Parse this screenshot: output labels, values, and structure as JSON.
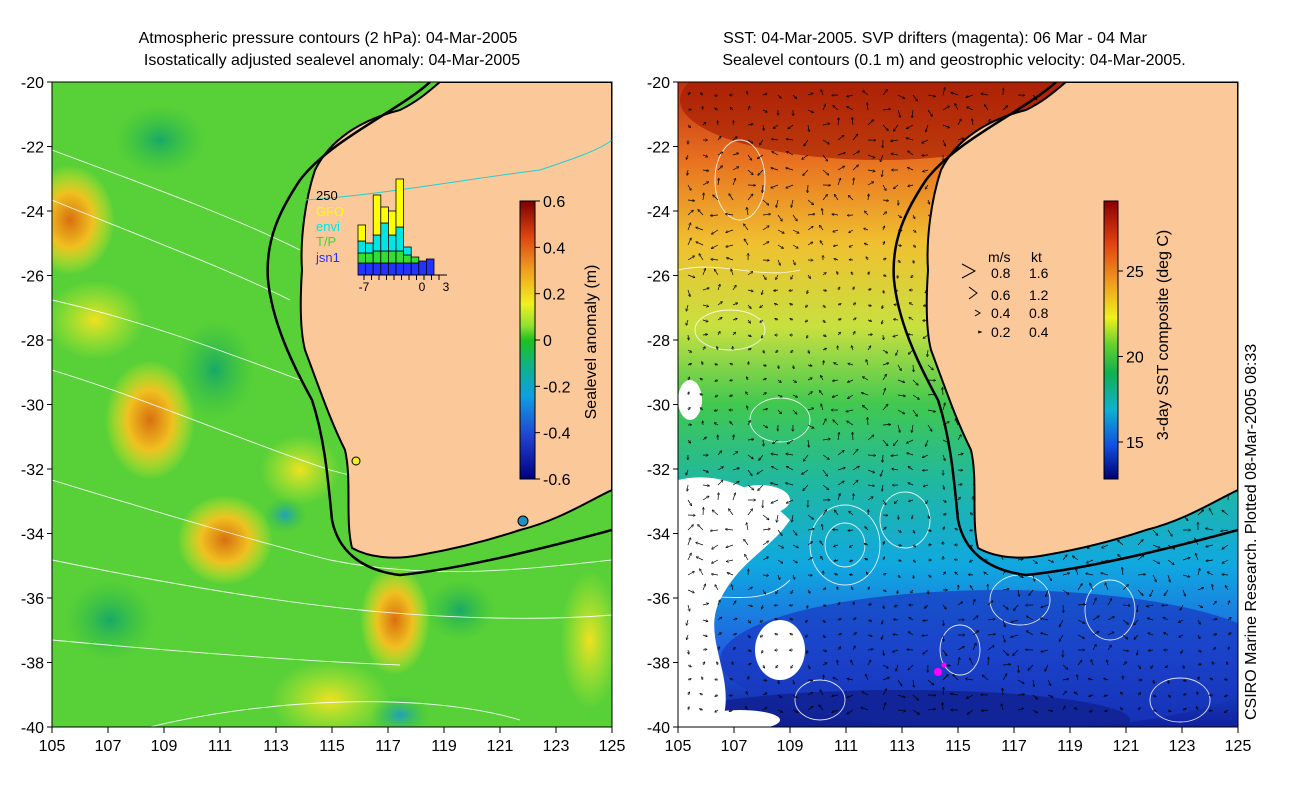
{
  "left_panel": {
    "title_line1": "Atmospheric pressure contours (2 hPa): 04-Mar-2005",
    "title_line2": "Isostatically adjusted sealevel anomaly: 04-Mar-2005",
    "x_ticks": [
      "105",
      "107",
      "109",
      "111",
      "113",
      "115",
      "117",
      "119",
      "121",
      "123",
      "125"
    ],
    "y_ticks": [
      "-20",
      "-22",
      "-24",
      "-26",
      "-28",
      "-30",
      "-32",
      "-34",
      "-36",
      "-38",
      "-40"
    ],
    "colorbar": {
      "label": "Sealevel anomaly (m)",
      "ticks": [
        "0.6",
        "0.4",
        "0.2",
        "0",
        "-0.2",
        "-0.4",
        "-0.6"
      ]
    },
    "inset": {
      "ymax_label": "250",
      "legend": [
        {
          "name": "GFO",
          "color": "#ffff00"
        },
        {
          "name": "envi",
          "color": "#00e5e5"
        },
        {
          "name": "T/P",
          "color": "#33dd33"
        },
        {
          "name": "jsn1",
          "color": "#2233ff"
        }
      ],
      "x_tick_labels": [
        "-7",
        "0",
        "3"
      ],
      "bar_days": [
        -7,
        -6,
        -5,
        -4,
        -3,
        -2,
        -1,
        0,
        1,
        2,
        3
      ],
      "bars": [
        {
          "jsn1": 30,
          "tp": 25,
          "envi": 30,
          "gfo": 40
        },
        {
          "jsn1": 30,
          "tp": 25,
          "envi": 25,
          "gfo": 0
        },
        {
          "jsn1": 30,
          "tp": 30,
          "envi": 40,
          "gfo": 100
        },
        {
          "jsn1": 30,
          "tp": 30,
          "envi": 70,
          "gfo": 40
        },
        {
          "jsn1": 30,
          "tp": 30,
          "envi": 40,
          "gfo": 60
        },
        {
          "jsn1": 30,
          "tp": 30,
          "envi": 60,
          "gfo": 120
        },
        {
          "jsn1": 30,
          "tp": 20,
          "envi": 20,
          "gfo": 0
        },
        {
          "jsn1": 30,
          "tp": 15,
          "envi": 0,
          "gfo": 0
        },
        {
          "jsn1": 35,
          "tp": 0,
          "envi": 0,
          "gfo": 0
        },
        {
          "jsn1": 40,
          "tp": 0,
          "envi": 0,
          "gfo": 0
        }
      ]
    }
  },
  "right_panel": {
    "title_line1": "SST: 04-Mar-2005. SVP drifters (magenta): 06 Mar - 04 Mar",
    "title_line2": "Sealevel contours (0.1 m) and geostrophic velocity: 04-Mar-2005.",
    "x_ticks": [
      "105",
      "107",
      "109",
      "111",
      "113",
      "115",
      "117",
      "119",
      "121",
      "123",
      "125"
    ],
    "y_ticks": [
      "-20",
      "-22",
      "-24",
      "-26",
      "-28",
      "-30",
      "-32",
      "-34",
      "-36",
      "-38",
      "-40"
    ],
    "colorbar": {
      "label": "3-day SST composite (deg C)",
      "ticks": [
        "25",
        "20",
        "15"
      ]
    },
    "velocity_legend": {
      "header_ms": "m/s",
      "header_kt": "kt",
      "rows": [
        {
          "ms": "0.8",
          "kt": "1.6"
        },
        {
          "ms": "0.6",
          "kt": "1.2"
        },
        {
          "ms": "0.4",
          "kt": "0.8"
        },
        {
          "ms": "0.2",
          "kt": "0.4"
        }
      ]
    }
  },
  "credit": "CSIRO Marine Research. Plotted 08-Mar-2005 08:33",
  "colors": {
    "land": "#fbc89a",
    "coast": "#000000",
    "contour": "#ffffff",
    "drifter": "#ff00ff"
  }
}
